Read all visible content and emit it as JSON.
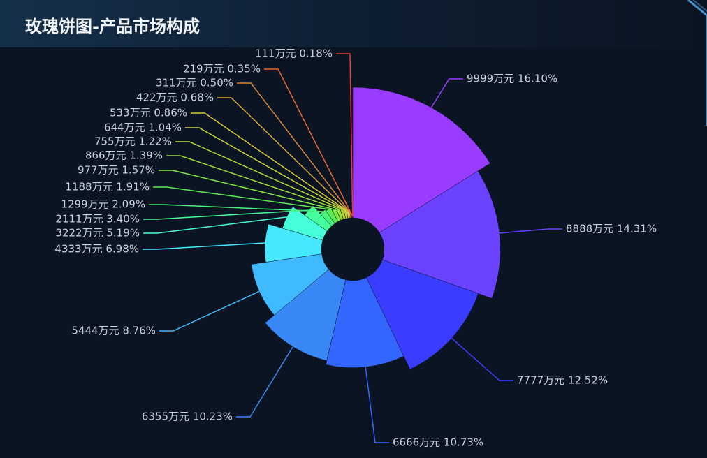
{
  "chart_data": {
    "type": "pie",
    "rose": "radius",
    "title": "玫瑰饼图-产品市场构成",
    "categories": [
      null,
      null,
      null,
      null,
      null,
      null,
      null,
      null,
      null,
      null,
      null,
      null,
      null,
      null,
      null,
      null,
      null,
      null,
      null,
      null
    ],
    "values": [
      9999,
      8888,
      7777,
      6666,
      6355,
      5444,
      4333,
      3222,
      2111,
      1299,
      1188,
      977,
      866,
      755,
      644,
      533,
      422,
      311,
      219,
      111
    ],
    "value_labels": [
      "9999万元  16.10%",
      "8888万元  14.31%",
      "7777万元  12.52%",
      "6666万元  10.73%",
      "6355万元  10.23%",
      "5444万元  8.76%",
      "4333万元  6.98%",
      "3222万元  5.19%",
      "2111万元  3.40%",
      "1299万元  2.09%",
      "1188万元  1.91%",
      "977万元  1.57%",
      "866万元  1.39%",
      "755万元  1.22%",
      "644万元  1.04%",
      "533万元  0.86%",
      "422万元  0.68%",
      "311万元  0.50%",
      "219万元  0.35%",
      "111万元  0.18%"
    ],
    "colors": [
      "#9a3cff",
      "#6a42ff",
      "#3a3dff",
      "#3366ff",
      "#3a88f5",
      "#3fbaff",
      "#45e8ff",
      "#45ffd8",
      "#45ff9c",
      "#48f57a",
      "#5aec55",
      "#7ce844",
      "#9cdc38",
      "#b6d834",
      "#ccd634",
      "#dcc733",
      "#dca733",
      "#dd8433",
      "#e96434",
      "#ee3a32"
    ]
  }
}
